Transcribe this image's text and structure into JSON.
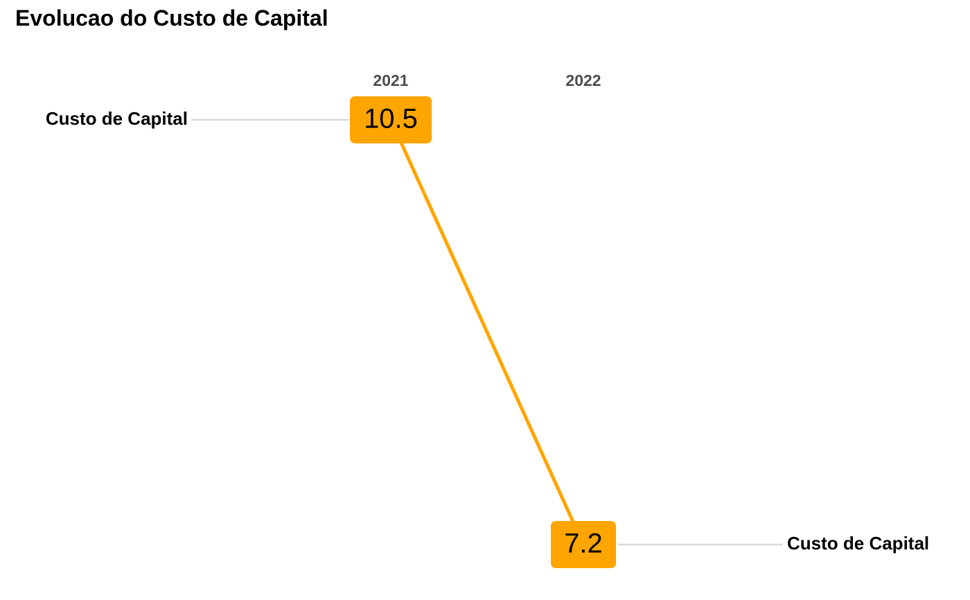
{
  "title": "Evolucao do Custo de Capital",
  "colors": {
    "series": "#FFA500",
    "connector": "#d9d9d9",
    "year_text": "#4d4d4d",
    "text": "#000000"
  },
  "chart_data": {
    "type": "line",
    "title": "Evolucao do Custo de Capital",
    "categories": [
      "2021",
      "2022"
    ],
    "series": [
      {
        "name": "Custo de Capital",
        "values": [
          10.5,
          7.2
        ],
        "value_labels": [
          "10.5",
          "7.2"
        ]
      }
    ],
    "xlabel": "",
    "ylabel": "",
    "ylim": [
      7.2,
      10.5
    ],
    "grid": false,
    "legend": "none",
    "series_labels": "left of first point and right of last point"
  }
}
